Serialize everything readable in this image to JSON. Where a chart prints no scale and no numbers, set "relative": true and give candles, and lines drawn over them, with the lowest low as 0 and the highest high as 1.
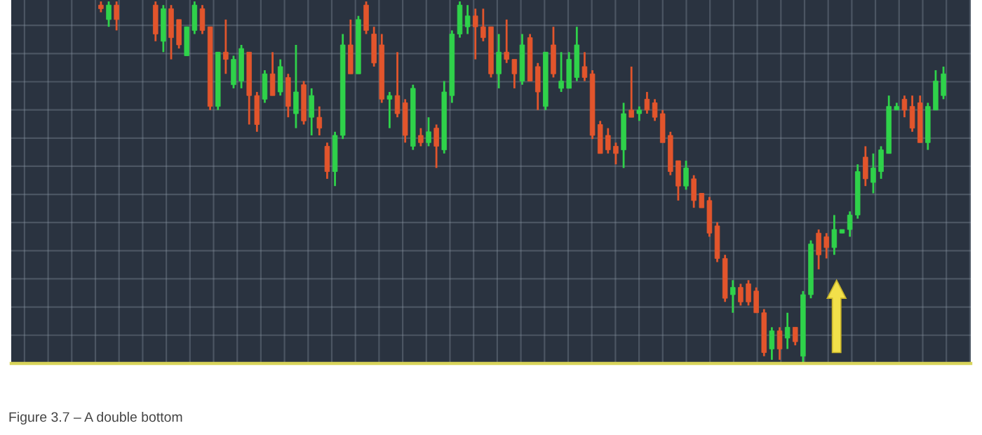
{
  "chart_data": {
    "type": "candlestick",
    "relative": true,
    "grid": true,
    "categories": [
      null,
      null,
      null,
      null,
      null,
      null,
      null,
      null,
      null,
      null,
      null,
      null,
      null,
      null,
      null,
      null,
      null,
      null,
      null,
      null,
      null,
      null,
      null,
      null,
      null,
      null,
      null,
      null,
      null,
      null,
      null,
      null,
      null,
      null,
      null,
      null,
      null,
      null,
      null,
      null,
      null,
      null,
      null,
      null,
      null,
      null,
      null,
      null,
      null,
      null,
      null,
      null,
      null,
      null,
      null,
      null,
      null,
      null,
      null,
      null,
      null,
      null,
      null,
      null,
      null,
      null,
      null,
      null,
      null,
      null,
      null,
      null,
      null,
      null,
      null,
      null,
      null,
      null,
      null,
      null,
      null,
      null,
      null,
      null,
      null,
      null,
      null,
      null,
      null,
      null,
      null,
      null,
      null,
      null,
      null,
      null,
      null,
      null,
      null,
      null,
      null,
      null,
      null,
      null,
      null,
      null,
      null,
      null,
      null,
      null,
      null,
      null,
      null,
      null,
      null,
      null,
      null,
      null,
      null,
      null,
      null,
      null,
      null
    ],
    "ohlc": [
      null,
      null,
      null,
      null,
      null,
      null,
      null,
      null,
      null,
      null,
      null,
      [
        0.99,
        1.0,
        0.97,
        0.98
      ],
      [
        0.95,
        1.0,
        0.93,
        0.99
      ],
      [
        0.99,
        1.0,
        0.92,
        0.95
      ],
      null,
      null,
      null,
      null,
      [
        0.99,
        1.0,
        0.89,
        0.91
      ],
      [
        0.89,
        0.99,
        0.86,
        0.98
      ],
      [
        0.98,
        0.99,
        0.84,
        0.9
      ],
      [
        0.95,
        0.95,
        0.87,
        0.88
      ],
      [
        0.85,
        0.93,
        0.85,
        0.93
      ],
      [
        0.92,
        1.0,
        0.91,
        0.99
      ],
      [
        0.98,
        0.99,
        0.91,
        0.92
      ],
      [
        0.93,
        0.93,
        0.7,
        0.71
      ],
      [
        0.71,
        0.86,
        0.7,
        0.86
      ],
      [
        0.86,
        0.95,
        0.8,
        0.84
      ],
      [
        0.77,
        0.85,
        0.76,
        0.84
      ],
      [
        0.78,
        0.88,
        0.76,
        0.87
      ],
      [
        0.86,
        0.86,
        0.66,
        0.74
      ],
      [
        0.74,
        0.75,
        0.64,
        0.66
      ],
      [
        0.73,
        0.81,
        0.72,
        0.8
      ],
      [
        0.8,
        0.86,
        0.74,
        0.74
      ],
      [
        0.75,
        0.84,
        0.74,
        0.82
      ],
      [
        0.79,
        0.8,
        0.68,
        0.71
      ],
      [
        0.69,
        0.88,
        0.65,
        0.75
      ],
      [
        0.77,
        0.78,
        0.66,
        0.67
      ],
      [
        0.68,
        0.76,
        0.63,
        0.74
      ],
      [
        0.68,
        0.71,
        0.63,
        0.65
      ],
      [
        0.6,
        0.61,
        0.51,
        0.53
      ],
      [
        0.53,
        0.64,
        0.49,
        0.63
      ],
      [
        0.63,
        0.91,
        0.62,
        0.88
      ],
      [
        0.88,
        0.95,
        0.8,
        0.8
      ],
      [
        0.8,
        0.96,
        0.8,
        0.95
      ],
      [
        0.99,
        1.0,
        0.91,
        0.92
      ],
      [
        0.91,
        0.93,
        0.82,
        0.83
      ],
      [
        0.88,
        0.91,
        0.72,
        0.73
      ],
      [
        0.73,
        0.75,
        0.65,
        0.74
      ],
      [
        0.74,
        0.86,
        0.68,
        0.69
      ],
      [
        0.72,
        0.73,
        0.61,
        0.63
      ],
      [
        0.6,
        0.77,
        0.59,
        0.76
      ],
      [
        0.63,
        0.65,
        0.6,
        0.61
      ],
      [
        0.61,
        0.68,
        0.6,
        0.64
      ],
      [
        0.65,
        0.66,
        0.54,
        0.6
      ],
      [
        0.59,
        0.78,
        0.58,
        0.75
      ],
      [
        0.74,
        0.92,
        0.72,
        0.91
      ],
      [
        0.91,
        1.0,
        0.9,
        0.99
      ],
      [
        0.93,
        0.99,
        0.91,
        0.96
      ],
      [
        0.96,
        0.98,
        0.84,
        0.93
      ],
      [
        0.93,
        0.98,
        0.89,
        0.9
      ],
      [
        0.93,
        0.93,
        0.79,
        0.8
      ],
      [
        0.8,
        0.91,
        0.76,
        0.86
      ],
      [
        0.86,
        0.95,
        0.83,
        0.84
      ],
      [
        0.84,
        0.84,
        0.76,
        0.8
      ],
      [
        0.78,
        0.91,
        0.77,
        0.88
      ],
      [
        0.9,
        0.91,
        0.78,
        0.78
      ],
      [
        0.82,
        0.83,
        0.7,
        0.75
      ],
      [
        0.71,
        0.86,
        0.7,
        0.86
      ],
      [
        0.88,
        0.93,
        0.79,
        0.8
      ],
      [
        0.76,
        0.86,
        0.75,
        0.78
      ],
      [
        0.76,
        0.86,
        0.76,
        0.84
      ],
      [
        0.79,
        0.93,
        0.78,
        0.88
      ],
      [
        0.82,
        0.86,
        0.78,
        0.79
      ],
      [
        0.8,
        0.81,
        0.62,
        0.63
      ],
      [
        0.66,
        0.67,
        0.58,
        0.58
      ],
      [
        0.63,
        0.65,
        0.58,
        0.59
      ],
      [
        0.6,
        0.61,
        0.55,
        0.58
      ],
      [
        0.59,
        0.72,
        0.54,
        0.69
      ],
      [
        0.7,
        0.82,
        0.68,
        0.68
      ],
      [
        0.69,
        0.71,
        0.67,
        0.7
      ],
      [
        0.73,
        0.75,
        0.69,
        0.7
      ],
      [
        0.72,
        0.73,
        0.67,
        0.68
      ],
      [
        0.69,
        0.7,
        0.61,
        0.61
      ],
      [
        0.63,
        0.64,
        0.52,
        0.53
      ],
      [
        0.56,
        0.56,
        0.45,
        0.49
      ],
      [
        0.49,
        0.56,
        0.48,
        0.54
      ],
      [
        0.51,
        0.52,
        0.43,
        0.45
      ],
      [
        0.47,
        0.47,
        0.43,
        0.43
      ],
      [
        0.45,
        0.46,
        0.35,
        0.36
      ],
      [
        0.38,
        0.39,
        0.28,
        0.29
      ],
      [
        0.29,
        0.3,
        0.17,
        0.18
      ],
      [
        0.19,
        0.23,
        0.14,
        0.21
      ],
      [
        0.21,
        0.22,
        0.16,
        0.17
      ],
      [
        0.22,
        0.23,
        0.16,
        0.17
      ],
      [
        0.2,
        0.21,
        0.14,
        0.14
      ],
      [
        0.14,
        0.15,
        0.02,
        0.03
      ],
      [
        0.04,
        0.1,
        0.01,
        0.09
      ],
      [
        0.09,
        0.1,
        0.01,
        0.04
      ],
      [
        0.07,
        0.14,
        0.04,
        0.1
      ],
      [
        0.1,
        0.1,
        0.05,
        0.06
      ],
      [
        0.02,
        0.2,
        0,
        0.19
      ],
      [
        0.19,
        0.34,
        0.18,
        0.33
      ],
      [
        0.36,
        0.37,
        0.26,
        0.3
      ],
      [
        0.35,
        0.36,
        0.29,
        0.32
      ],
      [
        0.32,
        0.41,
        0.3,
        0.37
      ],
      [
        0.36,
        0.37,
        0.36,
        0.37
      ],
      [
        0.37,
        0.42,
        0.35,
        0.41
      ],
      [
        0.41,
        0.55,
        0.4,
        0.53
      ],
      [
        0.57,
        0.6,
        0.49,
        0.51
      ],
      [
        0.5,
        0.58,
        0.47,
        0.54
      ],
      [
        0.53,
        0.6,
        0.51,
        0.59
      ],
      [
        0.58,
        0.74,
        0.58,
        0.71
      ],
      [
        0.7,
        0.72,
        0.7,
        0.71
      ],
      [
        0.73,
        0.74,
        0.68,
        0.7
      ],
      [
        0.71,
        0.74,
        0.64,
        0.65
      ],
      [
        0.72,
        0.74,
        0.61,
        0.61
      ],
      [
        0.61,
        0.72,
        0.59,
        0.71
      ],
      [
        0.7,
        0.81,
        0.7,
        0.78
      ],
      [
        0.74,
        0.82,
        0.73,
        0.8
      ],
      null,
      null,
      null
    ],
    "ref_lines": [
      {
        "axis": "y",
        "value": 0,
        "color": "#d8d45a"
      }
    ],
    "annotations": [
      "Figure 3.7 – A double bottom"
    ]
  }
}
